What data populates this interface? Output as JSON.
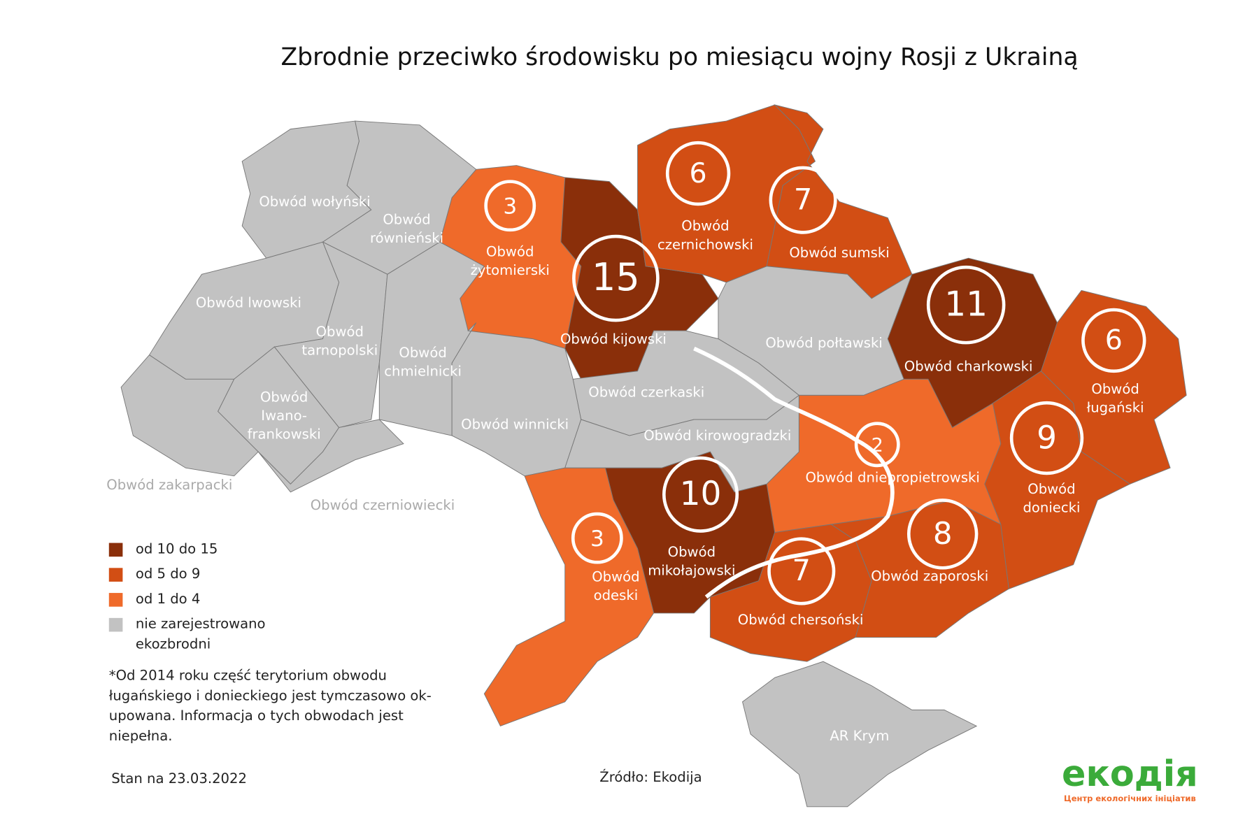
{
  "title": "Zbrodnie przeciwko środowisku po miesiącu wojny Rosji z Ukrainą",
  "regions": [
    {
      "label": [
        "Obwód wołyński"
      ],
      "color": "#c2c2c2"
    },
    {
      "label": [
        "Obwód",
        "równieński"
      ],
      "color": "#c2c2c2"
    },
    {
      "label": [
        "Obwód lwowski"
      ],
      "color": "#c2c2c2"
    },
    {
      "label": [
        "Obwód",
        "tarnopolski"
      ],
      "color": "#c2c2c2"
    },
    {
      "label": [
        "Obwód",
        "chmielnicki"
      ],
      "color": "#c2c2c2"
    },
    {
      "label": [
        "Obwód",
        "Iwano-",
        "frankowski"
      ],
      "color": "#c2c2c2"
    },
    {
      "label": [
        "Obwód zakarpacki"
      ],
      "color": "#c2c2c2"
    },
    {
      "label": [
        "Obwód czerniowiecki"
      ],
      "color": "#c2c2c2"
    },
    {
      "label": [
        "Obwód",
        "żytomierski"
      ],
      "count": 3,
      "color": "#ef6a2a"
    },
    {
      "label": [
        "Obwód winnicki"
      ],
      "color": "#c2c2c2"
    },
    {
      "label": [
        "Obwód kijowski"
      ],
      "count": 15,
      "color": "#8a2f0a"
    },
    {
      "label": [
        "Obwód",
        "czernichowski"
      ],
      "count": 6,
      "color": "#d24e14"
    },
    {
      "label": [
        "Obwód sumski"
      ],
      "count": 7,
      "color": "#d24e14"
    },
    {
      "label": [
        "Obwód połtawski"
      ],
      "color": "#c2c2c2"
    },
    {
      "label": [
        "Obwód charkowski"
      ],
      "count": 11,
      "color": "#8a2f0a"
    },
    {
      "label": [
        "Obwód",
        "ługański"
      ],
      "count": 6,
      "color": "#d24e14"
    },
    {
      "label": [
        "Obwód",
        "doniecki"
      ],
      "count": 9,
      "color": "#d24e14"
    },
    {
      "label": [
        "Obwód dniepropietrowski"
      ],
      "count": 2,
      "color": "#ef6a2a"
    },
    {
      "label": [
        "Obwód czerkaski"
      ],
      "color": "#c2c2c2"
    },
    {
      "label": [
        "Obwód kirowogradzki"
      ],
      "color": "#c2c2c2"
    },
    {
      "label": [
        "Obwód",
        "mikołajowski"
      ],
      "count": 10,
      "color": "#8a2f0a"
    },
    {
      "label": [
        "Obwód",
        "odeski"
      ],
      "count": 3,
      "color": "#ef6a2a"
    },
    {
      "label": [
        "Obwód chersoński"
      ],
      "count": 7,
      "color": "#d24e14"
    },
    {
      "label": [
        "Obwód zaporoski"
      ],
      "count": 8,
      "color": "#d24e14"
    },
    {
      "label": [
        "AR Krym"
      ],
      "color": "#c2c2c2"
    }
  ],
  "legend": [
    {
      "lines": [
        "od 10 do 15"
      ],
      "color": "#8a2f0a"
    },
    {
      "lines": [
        "od 5 do 9"
      ],
      "color": "#d24e14"
    },
    {
      "lines": [
        "od 1 do 4"
      ],
      "color": "#ef6a2a"
    },
    {
      "lines": [
        "nie zarejestrowano",
        "ekozbrodni"
      ],
      "color": "#c2c2c2"
    }
  ],
  "note": [
    "*Od 2014 roku część terytorium obwodu",
    "ługańskiego i donieckiego jest tymczasowo ok-",
    "upowana. Informacja o tych obwodach jest",
    "niepełna."
  ],
  "date": "Stan na 23.03.2022",
  "source": "Źródło: Ekodija",
  "logo": {
    "name": "екодія",
    "tagline": "Центр екологічних ініціатив"
  }
}
